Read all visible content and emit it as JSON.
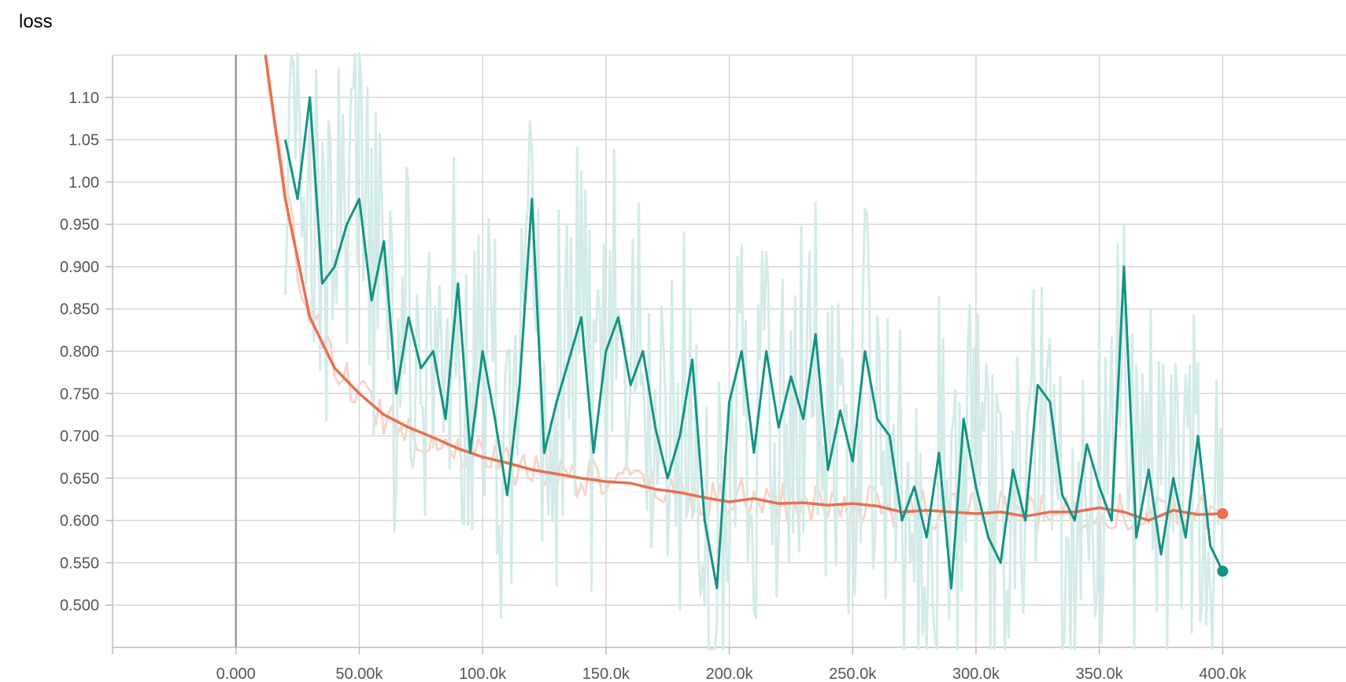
{
  "chart_data": {
    "type": "line",
    "title": "loss",
    "xlabel": "",
    "ylabel": "",
    "xlim": [
      -50000,
      450000
    ],
    "ylim": [
      0.45,
      1.15
    ],
    "grid": true,
    "x_ticks": [
      {
        "value": 0,
        "label": "0.000"
      },
      {
        "value": 50000,
        "label": "50.00k"
      },
      {
        "value": 100000,
        "label": "100.0k"
      },
      {
        "value": 150000,
        "label": "150.0k"
      },
      {
        "value": 200000,
        "label": "200.0k"
      },
      {
        "value": 250000,
        "label": "250.0k"
      },
      {
        "value": 300000,
        "label": "300.0k"
      },
      {
        "value": 350000,
        "label": "350.0k"
      },
      {
        "value": 400000,
        "label": "400.0k"
      }
    ],
    "y_ticks": [
      {
        "value": 1.1,
        "label": "1.10"
      },
      {
        "value": 1.05,
        "label": "1.05"
      },
      {
        "value": 1.0,
        "label": "1.00"
      },
      {
        "value": 0.95,
        "label": "0.950"
      },
      {
        "value": 0.9,
        "label": "0.900"
      },
      {
        "value": 0.85,
        "label": "0.850"
      },
      {
        "value": 0.8,
        "label": "0.800"
      },
      {
        "value": 0.75,
        "label": "0.750"
      },
      {
        "value": 0.7,
        "label": "0.700"
      },
      {
        "value": 0.65,
        "label": "0.650"
      },
      {
        "value": 0.6,
        "label": "0.600"
      },
      {
        "value": 0.55,
        "label": "0.550"
      },
      {
        "value": 0.5,
        "label": "0.500"
      }
    ],
    "series": [
      {
        "color": "#e8704f",
        "raw_color": "#f8d5c9",
        "last_value": 0.608,
        "x": [
          12000,
          20000,
          30000,
          40000,
          50000,
          60000,
          70000,
          80000,
          90000,
          100000,
          110000,
          120000,
          130000,
          140000,
          150000,
          160000,
          170000,
          180000,
          190000,
          200000,
          210000,
          220000,
          230000,
          240000,
          250000,
          260000,
          270000,
          280000,
          290000,
          300000,
          310000,
          320000,
          330000,
          340000,
          350000,
          360000,
          370000,
          380000,
          390000,
          400000
        ],
        "y": [
          1.15,
          0.98,
          0.84,
          0.78,
          0.75,
          0.725,
          0.71,
          0.698,
          0.685,
          0.675,
          0.668,
          0.66,
          0.655,
          0.65,
          0.646,
          0.644,
          0.637,
          0.633,
          0.627,
          0.622,
          0.626,
          0.62,
          0.621,
          0.618,
          0.62,
          0.617,
          0.61,
          0.612,
          0.61,
          0.608,
          0.61,
          0.605,
          0.61,
          0.61,
          0.615,
          0.61,
          0.6,
          0.612,
          0.607,
          0.608
        ]
      },
      {
        "color": "#139384",
        "raw_color": "#d3ebe8",
        "last_value": 0.54,
        "x": [
          20000,
          25000,
          30000,
          35000,
          40000,
          45000,
          50000,
          55000,
          60000,
          65000,
          70000,
          75000,
          80000,
          85000,
          90000,
          95000,
          100000,
          105000,
          110000,
          115000,
          120000,
          125000,
          130000,
          135000,
          140000,
          145000,
          150000,
          155000,
          160000,
          165000,
          170000,
          175000,
          180000,
          185000,
          190000,
          195000,
          200000,
          205000,
          210000,
          215000,
          220000,
          225000,
          230000,
          235000,
          240000,
          245000,
          250000,
          255000,
          260000,
          265000,
          270000,
          275000,
          280000,
          285000,
          290000,
          295000,
          300000,
          305000,
          310000,
          315000,
          320000,
          325000,
          330000,
          335000,
          340000,
          345000,
          350000,
          355000,
          360000,
          365000,
          370000,
          375000,
          380000,
          385000,
          390000,
          395000,
          400000
        ],
        "y": [
          1.05,
          0.98,
          1.1,
          0.88,
          0.9,
          0.95,
          0.98,
          0.86,
          0.93,
          0.75,
          0.84,
          0.78,
          0.8,
          0.72,
          0.88,
          0.68,
          0.8,
          0.72,
          0.63,
          0.76,
          0.98,
          0.68,
          0.74,
          0.79,
          0.84,
          0.68,
          0.8,
          0.84,
          0.76,
          0.8,
          0.71,
          0.65,
          0.7,
          0.79,
          0.6,
          0.52,
          0.74,
          0.8,
          0.68,
          0.8,
          0.71,
          0.77,
          0.72,
          0.82,
          0.66,
          0.73,
          0.67,
          0.8,
          0.72,
          0.7,
          0.6,
          0.64,
          0.58,
          0.68,
          0.52,
          0.72,
          0.64,
          0.58,
          0.55,
          0.66,
          0.6,
          0.76,
          0.74,
          0.63,
          0.6,
          0.69,
          0.64,
          0.6,
          0.9,
          0.58,
          0.66,
          0.56,
          0.65,
          0.58,
          0.7,
          0.57,
          0.54
        ]
      }
    ]
  }
}
